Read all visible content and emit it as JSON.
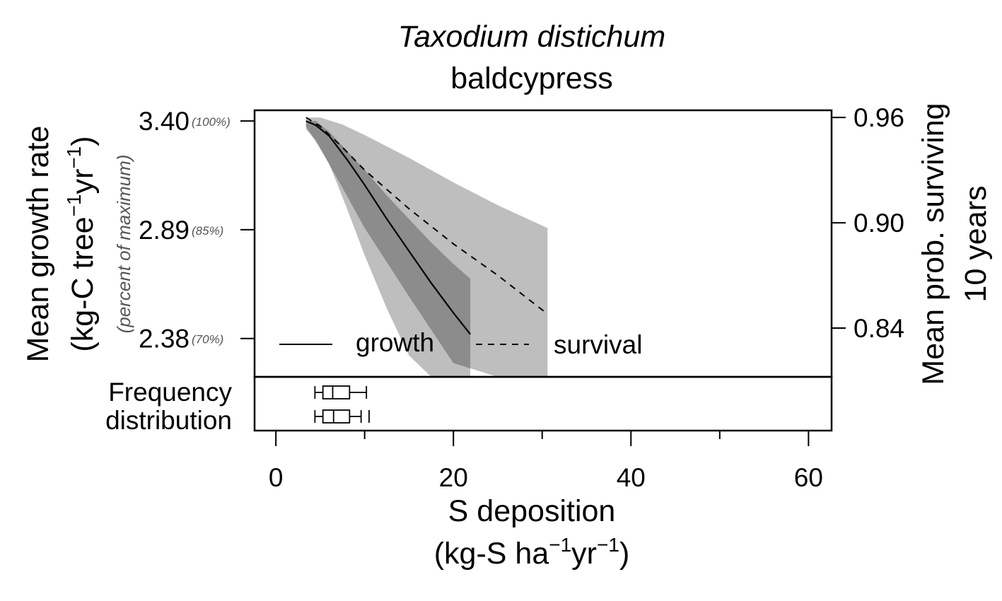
{
  "chart_data": {
    "type": "line",
    "title": "Taxodium distichum",
    "subtitle": "baldcypress",
    "xlabel_line1": "S deposition",
    "xlabel_line2_prefix": "(kg-S ha",
    "xlabel_line2_mid": "yr",
    "xlabel_line2_suffix": ")",
    "superscript": "−1",
    "ylabel_left_line1": "Mean growth rate",
    "ylabel_left_line2_prefix": "(kg-C tree",
    "ylabel_left_line2_mid": "yr",
    "ylabel_left_line2_suffix": ")",
    "ylabel_left_note": "(percent of maximum)",
    "ylabel_right_line1": "Mean prob. surviving",
    "ylabel_right_line2": "10 years",
    "freq_label_line1": "Frequency",
    "freq_label_line2": "distribution",
    "xlim": [
      -2.4,
      62.6
    ],
    "x_ticks": [
      0,
      20,
      40,
      60
    ],
    "x_minor_ticks": [
      10,
      30,
      50
    ],
    "growth_ylim": [
      2.2,
      3.45
    ],
    "growth_ticks": [
      {
        "value": 3.4,
        "label": "3.40",
        "pct": "(100%)"
      },
      {
        "value": 2.89,
        "label": "2.89",
        "pct": "(85%)"
      },
      {
        "value": 2.38,
        "label": "2.38",
        "pct": "(70%)"
      }
    ],
    "survival_ylim": [
      0.8122,
      0.9641
    ],
    "survival_ticks": [
      {
        "value": 0.96,
        "label": "0.96"
      },
      {
        "value": 0.9,
        "label": "0.90"
      },
      {
        "value": 0.84,
        "label": "0.84"
      }
    ],
    "series": [
      {
        "name": "growth",
        "style": "solid",
        "x": [
          3.4,
          4.5,
          6.0,
          8.0,
          10.0,
          12.5,
          15.0,
          17.5,
          20.0,
          21.9
        ],
        "y": [
          3.4,
          3.38,
          3.33,
          3.22,
          3.1,
          2.94,
          2.79,
          2.64,
          2.5,
          2.4
        ],
        "ci_lower": [
          3.36,
          3.31,
          3.2,
          2.99,
          2.77,
          2.52,
          2.3,
          2.1,
          1.95,
          1.85
        ],
        "ci_upper": [
          3.4,
          3.4,
          3.35,
          3.26,
          3.17,
          3.05,
          2.94,
          2.83,
          2.73,
          2.66
        ]
      },
      {
        "name": "survival",
        "style": "dashed",
        "x": [
          3.4,
          5.0,
          7.5,
          10.0,
          15.0,
          20.0,
          25.0,
          30.6
        ],
        "y": [
          0.96,
          0.955,
          0.943,
          0.93,
          0.908,
          0.888,
          0.87,
          0.848
        ],
        "ci_lower": [
          0.955,
          0.942,
          0.92,
          0.897,
          0.858,
          0.82,
          0.785,
          0.75
        ],
        "ci_upper": [
          0.96,
          0.96,
          0.956,
          0.95,
          0.937,
          0.923,
          0.91,
          0.897
        ]
      }
    ],
    "boxplots": [
      {
        "name": "growth",
        "min": 4.4,
        "q1": 5.3,
        "median": 6.4,
        "q3": 8.3,
        "max": 10.2,
        "outliers": []
      },
      {
        "name": "survival",
        "min": 4.4,
        "q1": 5.3,
        "median": 6.5,
        "q3": 8.3,
        "max": 9.6,
        "outliers": [
          10.5
        ]
      }
    ],
    "legend_placement": "bottom-left",
    "grid": false,
    "colors": {
      "ci_inner": "#8c8c8c",
      "ci_outer": "#bebebe",
      "line": "#000000",
      "pct_text": "#555555"
    }
  }
}
